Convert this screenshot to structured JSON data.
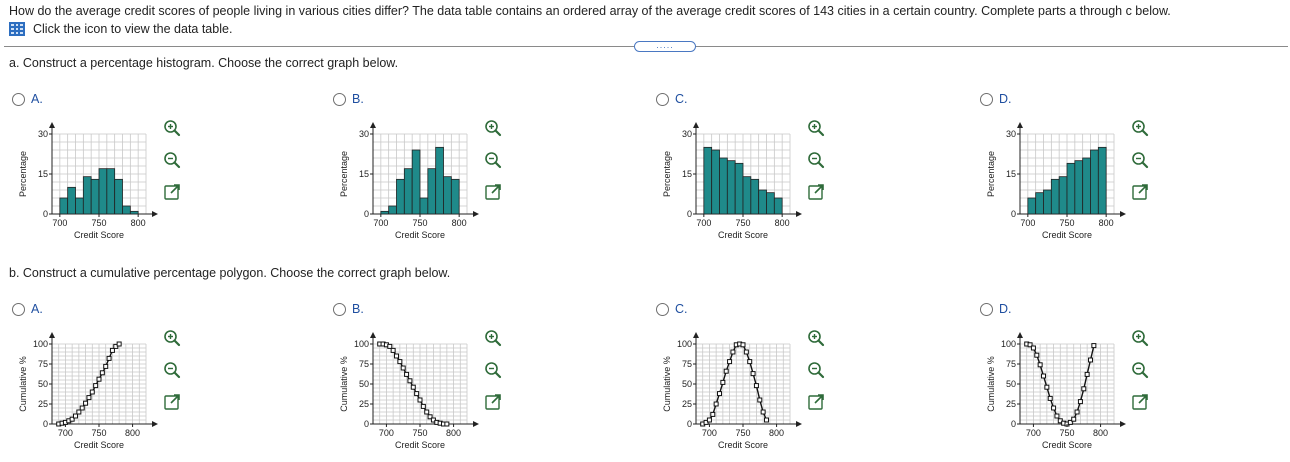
{
  "question": "How do the average credit scores of people living in various cities differ? The data table contains an ordered array of the average credit scores of 143 cities in a certain country. Complete parts a through c below.",
  "data_link": "Click the icon to view the data table.",
  "collapse_label": ".....",
  "part_a": {
    "label": "a. Construct a percentage histogram. Choose the correct graph below.",
    "options": [
      {
        "letter": "A.",
        "chart_data": {
          "type": "bar",
          "categories": [
            "700",
            "710",
            "720",
            "730",
            "740",
            "750",
            "760",
            "770",
            "780",
            "790"
          ],
          "values": [
            6,
            10,
            6,
            14,
            13,
            17,
            17,
            13,
            3,
            1
          ],
          "xlabel": "Credit Score",
          "ylabel": "Percentage",
          "yticks": [
            "0",
            "15",
            "30"
          ],
          "xticks": [
            "700",
            "750",
            "800"
          ],
          "ylim": [
            0,
            30
          ],
          "xlim": [
            690,
            810
          ]
        }
      },
      {
        "letter": "B.",
        "chart_data": {
          "type": "bar",
          "categories": [
            "700",
            "710",
            "720",
            "730",
            "740",
            "750",
            "760",
            "770",
            "780",
            "790"
          ],
          "values": [
            1,
            3,
            13,
            17,
            24,
            6,
            17,
            25,
            14,
            13
          ],
          "xlabel": "Credit Score",
          "ylabel": "Percentage",
          "yticks": [
            "0",
            "15",
            "30"
          ],
          "xticks": [
            "700",
            "750",
            "800"
          ],
          "ylim": [
            0,
            30
          ],
          "xlim": [
            690,
            810
          ]
        }
      },
      {
        "letter": "C.",
        "chart_data": {
          "type": "bar",
          "categories": [
            "700",
            "710",
            "720",
            "730",
            "740",
            "750",
            "760",
            "770",
            "780",
            "790"
          ],
          "values": [
            25,
            24,
            21,
            20,
            19,
            14,
            13,
            9,
            8,
            6
          ],
          "xlabel": "Credit Score",
          "ylabel": "Percentage",
          "yticks": [
            "0",
            "15",
            "30"
          ],
          "xticks": [
            "700",
            "750",
            "800"
          ],
          "ylim": [
            0,
            30
          ],
          "xlim": [
            690,
            810
          ]
        }
      },
      {
        "letter": "D.",
        "chart_data": {
          "type": "bar",
          "categories": [
            "700",
            "710",
            "720",
            "730",
            "740",
            "750",
            "760",
            "770",
            "780",
            "790"
          ],
          "values": [
            6,
            8,
            9,
            13,
            14,
            19,
            20,
            21,
            24,
            25
          ],
          "xlabel": "Credit Score",
          "ylabel": "Percentage",
          "yticks": [
            "0",
            "15",
            "30"
          ],
          "xticks": [
            "700",
            "750",
            "800"
          ],
          "ylim": [
            0,
            30
          ],
          "xlim": [
            690,
            810
          ]
        }
      }
    ]
  },
  "part_b": {
    "label": "b. Construct a cumulative percentage polygon. Choose the correct graph below.",
    "options": [
      {
        "letter": "A.",
        "chart_data": {
          "type": "line",
          "x": [
            690,
            695,
            700,
            705,
            710,
            715,
            720,
            725,
            730,
            735,
            740,
            745,
            750,
            755,
            760,
            765,
            770,
            775,
            780
          ],
          "y": [
            0,
            1,
            2,
            4,
            6,
            10,
            15,
            20,
            26,
            33,
            40,
            48,
            56,
            64,
            72,
            82,
            92,
            97,
            100
          ],
          "xlabel": "Credit Score",
          "ylabel": "Cumulative %",
          "yticks": [
            "0",
            "25",
            "50",
            "75",
            "100"
          ],
          "xticks": [
            "700",
            "750",
            "800"
          ],
          "ylim": [
            0,
            100
          ],
          "xlim": [
            680,
            820
          ]
        }
      },
      {
        "letter": "B.",
        "chart_data": {
          "type": "line",
          "x": [
            690,
            695,
            700,
            705,
            710,
            715,
            720,
            725,
            730,
            735,
            740,
            745,
            750,
            755,
            760,
            765,
            770,
            775,
            780,
            785,
            790
          ],
          "y": [
            100,
            100,
            99,
            97,
            92,
            85,
            78,
            70,
            62,
            54,
            46,
            38,
            30,
            22,
            15,
            9,
            5,
            2,
            1,
            0,
            0
          ],
          "xlabel": "Credit Score",
          "ylabel": "Cumulative %",
          "yticks": [
            "0",
            "25",
            "50",
            "75",
            "100"
          ],
          "xticks": [
            "700",
            "750",
            "800"
          ],
          "ylim": [
            0,
            100
          ],
          "xlim": [
            680,
            820
          ]
        }
      },
      {
        "letter": "C.",
        "chart_data": {
          "type": "line",
          "x": [
            690,
            695,
            700,
            705,
            710,
            715,
            720,
            725,
            730,
            735,
            740,
            745,
            750,
            755,
            760,
            765,
            770,
            775,
            780,
            785
          ],
          "y": [
            0,
            2,
            5,
            12,
            25,
            38,
            52,
            66,
            78,
            90,
            99,
            100,
            99,
            90,
            78,
            63,
            48,
            30,
            15,
            5
          ],
          "xlabel": "Credit Score",
          "ylabel": "Cumulative %",
          "yticks": [
            "0",
            "25",
            "50",
            "75",
            "100"
          ],
          "xticks": [
            "700",
            "750",
            "800"
          ],
          "ylim": [
            0,
            100
          ],
          "xlim": [
            680,
            820
          ]
        }
      },
      {
        "letter": "D.",
        "chart_data": {
          "type": "line",
          "x": [
            690,
            695,
            700,
            705,
            710,
            715,
            720,
            725,
            730,
            735,
            740,
            745,
            750,
            755,
            760,
            765,
            770,
            775,
            780,
            785,
            790
          ],
          "y": [
            100,
            99,
            95,
            86,
            74,
            60,
            46,
            32,
            20,
            10,
            4,
            1,
            0,
            2,
            6,
            15,
            28,
            44,
            62,
            80,
            98
          ],
          "xlabel": "Credit Score",
          "ylabel": "Cumulative %",
          "yticks": [
            "0",
            "25",
            "50",
            "75",
            "100"
          ],
          "xticks": [
            "700",
            "750",
            "800"
          ],
          "ylim": [
            0,
            100
          ],
          "xlim": [
            680,
            820
          ]
        }
      }
    ]
  },
  "tools": [
    "zoom-in-icon",
    "zoom-out-icon",
    "expand-icon"
  ],
  "colors": {
    "bar": "#1f8a8a",
    "accent": "#1f4fa0",
    "grid": "#c8c8c8"
  }
}
